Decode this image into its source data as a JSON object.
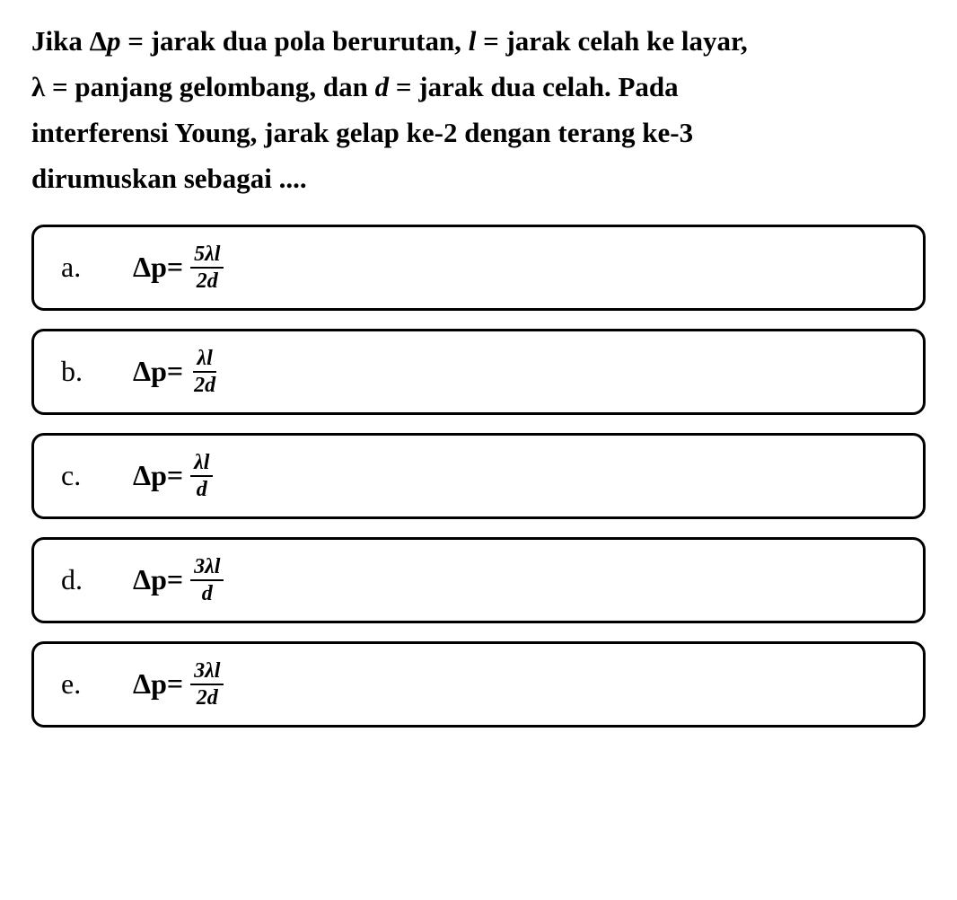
{
  "question": {
    "line1_part1": "Jika ",
    "line1_delta": "Δ",
    "line1_var1": "p",
    "line1_part2": " = jarak dua pola berurutan, ",
    "line1_var2": "l",
    "line1_part3": " = jarak celah ke layar,",
    "line2_lambda": "λ",
    "line2_part1": " = panjang gelombang, dan ",
    "line2_var1": "d",
    "line2_part2": " = jarak dua celah. Pada",
    "line3": "interferensi Young, jarak gelap ke-2 dengan terang ke-3",
    "line4": "dirumuskan sebagai ...."
  },
  "options": [
    {
      "letter": "a.",
      "lhs_delta": "Δ",
      "lhs_var": "p",
      "equals": " = ",
      "numerator": "5λl",
      "denominator": "2d"
    },
    {
      "letter": "b.",
      "lhs_delta": "Δ",
      "lhs_var": "p",
      "equals": " = ",
      "numerator": "λl",
      "denominator": "2d"
    },
    {
      "letter": "c.",
      "lhs_delta": "Δ",
      "lhs_var": "p",
      "equals": " = ",
      "numerator": "λl",
      "denominator": "d"
    },
    {
      "letter": "d.",
      "lhs_delta": "Δ",
      "lhs_var": "p",
      "equals": " = ",
      "numerator": "3λl",
      "denominator": "d"
    },
    {
      "letter": "e.",
      "lhs_delta": "Δ",
      "lhs_var": "p",
      "equals": " = ",
      "numerator": "3λl",
      "denominator": "2d"
    }
  ],
  "styling": {
    "background_color": "#ffffff",
    "text_color": "#000000",
    "border_color": "#000000",
    "border_width": 3,
    "border_radius": 14,
    "question_fontsize": 31,
    "option_fontsize": 32,
    "fraction_fontsize": 24,
    "font_family": "Times New Roman",
    "font_weight_question": "bold",
    "option_gap": 20,
    "option_padding_v": 18,
    "option_padding_h": 30
  }
}
